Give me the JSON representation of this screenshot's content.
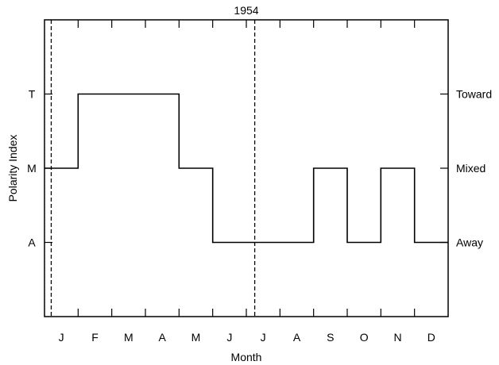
{
  "chart_data": {
    "type": "line",
    "step": true,
    "title": "1954",
    "xlabel": "Month",
    "ylabel": "Polarity Index",
    "x_ticks": [
      "J",
      "F",
      "M",
      "A",
      "M",
      "J",
      "J",
      "A",
      "S",
      "O",
      "N",
      "D"
    ],
    "y_levels": [
      {
        "value": 1,
        "left_label": "A",
        "right_label": "Away"
      },
      {
        "value": 2,
        "left_label": "M",
        "right_label": "Mixed"
      },
      {
        "value": 3,
        "left_label": "T",
        "right_label": "Toward"
      }
    ],
    "xlim": [
      0,
      12
    ],
    "ylim": [
      0,
      4
    ],
    "series": [
      {
        "x": [
          0,
          1,
          1,
          4,
          4,
          5,
          5,
          8,
          8,
          9,
          9,
          10,
          10,
          11,
          11,
          12
        ],
        "y": [
          2,
          2,
          3,
          3,
          2,
          2,
          1,
          1,
          2,
          2,
          1,
          1,
          2,
          2,
          1,
          1
        ]
      }
    ],
    "vertical_lines": [
      {
        "x": 0.2,
        "style": "dashed"
      },
      {
        "x": 6.25,
        "style": "dashed"
      }
    ],
    "grid": false
  }
}
